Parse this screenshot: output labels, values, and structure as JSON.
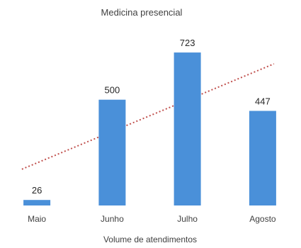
{
  "chart_data": {
    "type": "bar",
    "title": "Medicina presencial",
    "xlabel": "Volume de atendimentos",
    "ylabel": "",
    "categories": [
      "Maio",
      "Junho",
      "Julho",
      "Agosto"
    ],
    "series": [
      {
        "values": [
          26,
          500,
          723,
          447
        ],
        "color": "#4a90d9"
      }
    ],
    "data_labels": [
      "26",
      "500",
      "723",
      "447"
    ],
    "ylim": [
      0,
      760
    ],
    "grid": false,
    "legend": "none",
    "trendline": {
      "type": "linear",
      "style": "dotted",
      "color": "#c0504d"
    }
  }
}
